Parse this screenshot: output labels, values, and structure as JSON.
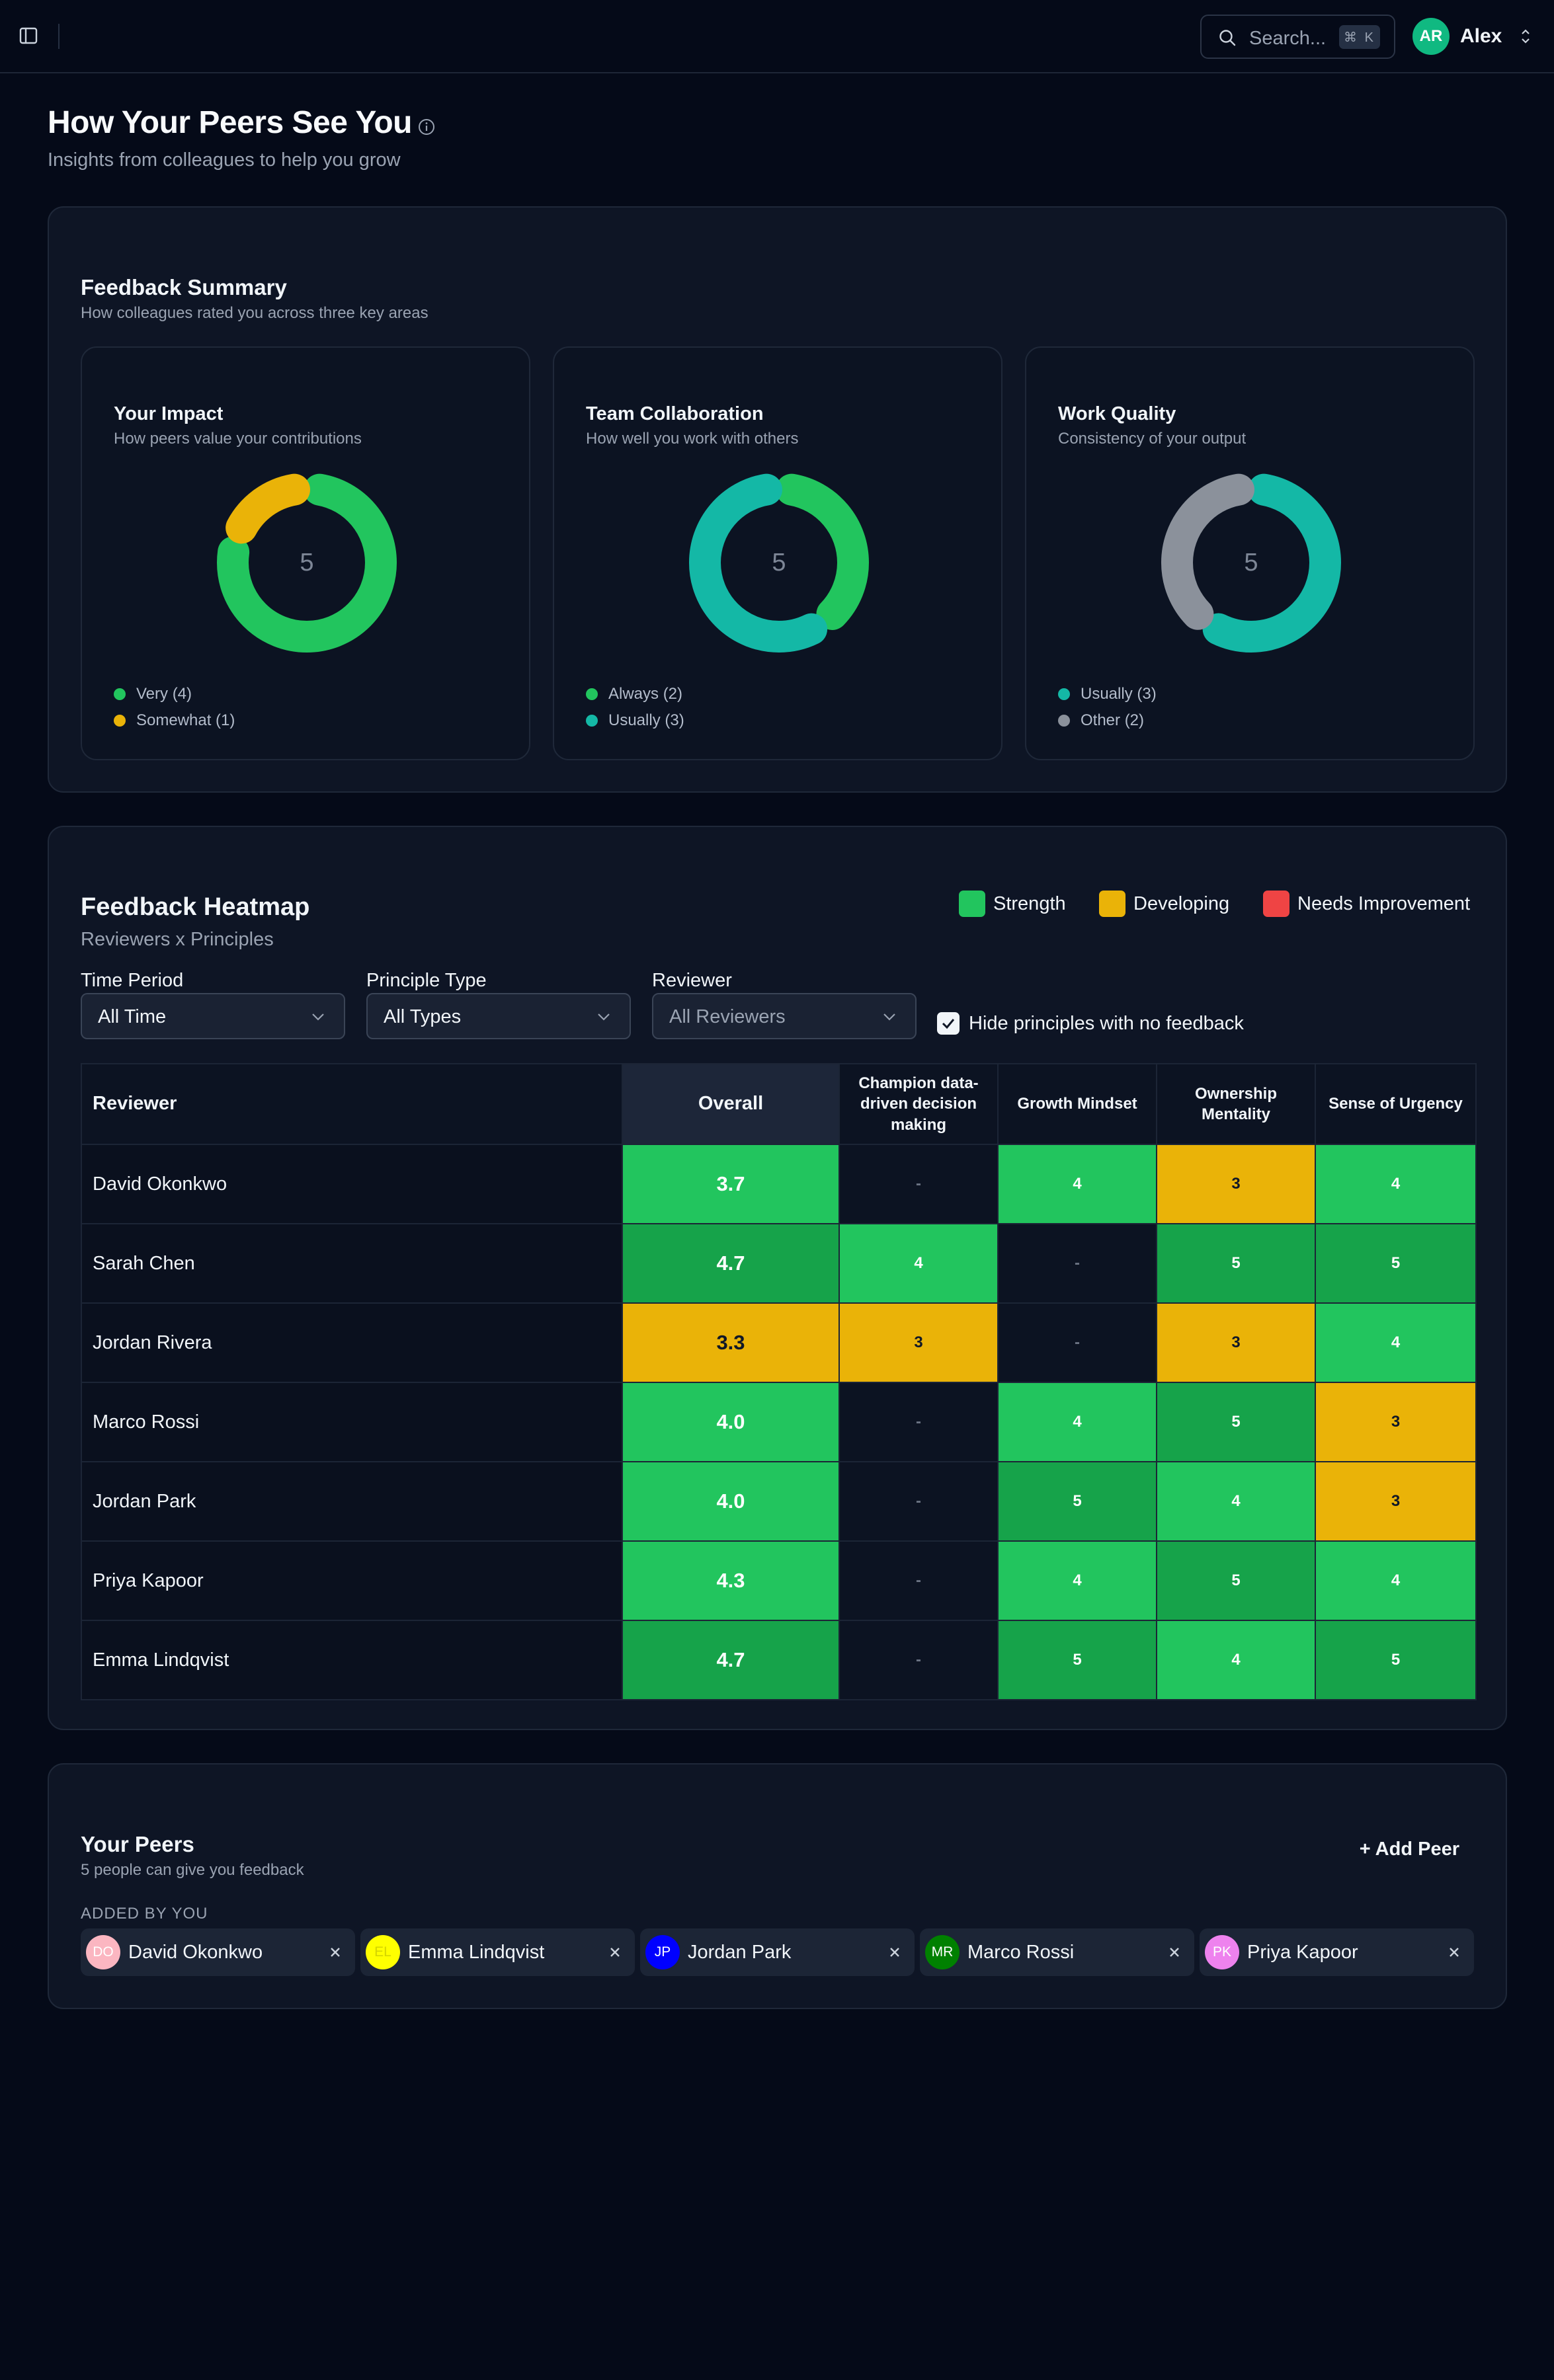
{
  "header": {
    "search_placeholder": "Search...",
    "search_shortcut": "⌘ K",
    "user_initials": "AR",
    "user_name": "Alex",
    "icons": [
      "sidebar-toggle-icon",
      "search-icon",
      "chevron-updown-icon"
    ]
  },
  "page": {
    "title": "How Your Peers See You",
    "subtitle": "Insights from colleagues to help you grow"
  },
  "summary": {
    "title": "Feedback Summary",
    "subtitle": "How colleagues rated you across three key areas",
    "cards": [
      {
        "title": "Your Impact",
        "subtitle": "How peers value your contributions",
        "total": "5",
        "segments": [
          {
            "label": "Very (4)",
            "value": 4,
            "color": "#22c55e"
          },
          {
            "label": "Somewhat (1)",
            "value": 1,
            "color": "#eab308"
          }
        ]
      },
      {
        "title": "Team Collaboration",
        "subtitle": "How well you work with others",
        "total": "5",
        "segments": [
          {
            "label": "Always (2)",
            "value": 2,
            "color": "#22c55e"
          },
          {
            "label": "Usually (3)",
            "value": 3,
            "color": "#14b8a6"
          }
        ]
      },
      {
        "title": "Work Quality",
        "subtitle": "Consistency of your output",
        "total": "5",
        "segments": [
          {
            "label": "Usually (3)",
            "value": 3,
            "color": "#14b8a6"
          },
          {
            "label": "Other (2)",
            "value": 2,
            "color": "#8b919b"
          }
        ]
      }
    ]
  },
  "heatmap": {
    "title": "Feedback Heatmap",
    "subtitle": "Reviewers x Principles",
    "legend": [
      {
        "label": "Strength",
        "color": "#22c55e"
      },
      {
        "label": "Developing",
        "color": "#eab308"
      },
      {
        "label": "Needs Improvement",
        "color": "#ef4444"
      }
    ],
    "filters": [
      {
        "label": "Time Period",
        "value": "All Time"
      },
      {
        "label": "Principle Type",
        "value": "All Types"
      },
      {
        "label": "Reviewer",
        "value": "All Reviewers"
      }
    ],
    "hide_empty_label": "Hide principles with no feedback",
    "hide_empty_checked": true,
    "columns": [
      "Reviewer",
      "Overall",
      "Champion data-driven decision making",
      "Growth Mindset",
      "Ownership Mentality",
      "Sense of Urgency"
    ],
    "rows": [
      {
        "name": "David Okonkwo",
        "overall": "3.7",
        "cells": [
          "-",
          "4",
          "3",
          "4"
        ]
      },
      {
        "name": "Sarah Chen",
        "overall": "4.7",
        "cells": [
          "4",
          "-",
          "5",
          "5"
        ]
      },
      {
        "name": "Jordan Rivera",
        "overall": "3.3",
        "cells": [
          "3",
          "-",
          "3",
          "4"
        ]
      },
      {
        "name": "Marco Rossi",
        "overall": "4.0",
        "cells": [
          "-",
          "4",
          "5",
          "3"
        ]
      },
      {
        "name": "Jordan Park",
        "overall": "4.0",
        "cells": [
          "-",
          "5",
          "4",
          "3"
        ]
      },
      {
        "name": "Priya Kapoor",
        "overall": "4.3",
        "cells": [
          "-",
          "4",
          "5",
          "4"
        ]
      },
      {
        "name": "Emma Lindqvist",
        "overall": "4.7",
        "cells": [
          "-",
          "5",
          "4",
          "5"
        ]
      }
    ]
  },
  "peers": {
    "title": "Your Peers",
    "subtitle": "5 people can give you feedback",
    "add_label": "+ Add Peer",
    "added_by_you_label": "ADDED BY YOU",
    "list": [
      {
        "initials": "DO",
        "name": "David Okonkwo",
        "color": "#fbb6c1",
        "text": "#fff"
      },
      {
        "initials": "EL",
        "name": "Emma Lindqvist",
        "color": "#ffff00",
        "text": "#d4d400"
      },
      {
        "initials": "JP",
        "name": "Jordan Park",
        "color": "#0000ff",
        "text": "#fff"
      },
      {
        "initials": "MR",
        "name": "Marco Rossi",
        "color": "#008000",
        "text": "#fff"
      },
      {
        "initials": "PK",
        "name": "Priya Kapoor",
        "color": "#ee82ee",
        "text": "#fff"
      }
    ]
  }
}
